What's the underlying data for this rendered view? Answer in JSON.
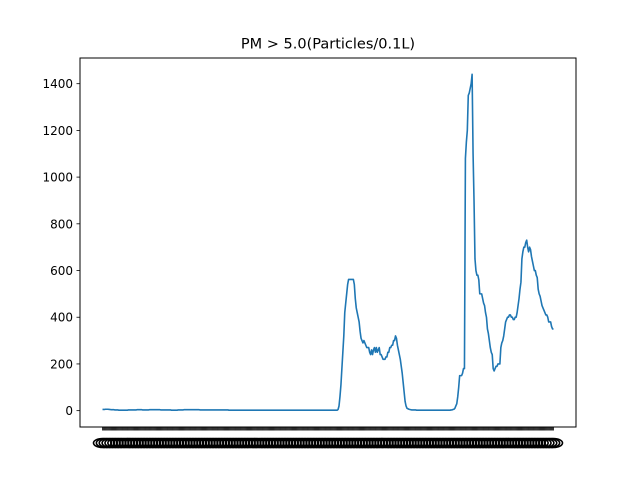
{
  "chart_data": {
    "type": "line",
    "title": "PM > 5.0(Particles/0.1L)",
    "xlabel": "",
    "ylabel": "",
    "ylim": [
      -70,
      1510
    ],
    "yticks": [
      0,
      200,
      400,
      600,
      800,
      1000,
      1200,
      1400
    ],
    "grid": false,
    "legend": "none",
    "line_color": "#1f77b4",
    "x_tick_labels_note": "",
    "series": [
      {
        "values": [
          5,
          5,
          5,
          6,
          6,
          6,
          6,
          5,
          5,
          4,
          4,
          4,
          4,
          3,
          3,
          3,
          3,
          2,
          2,
          2,
          2,
          2,
          2,
          2,
          2,
          2,
          2,
          3,
          3,
          3,
          3,
          3,
          3,
          3,
          3,
          3,
          4,
          4,
          4,
          4,
          4,
          4,
          3,
          3,
          3,
          3,
          3,
          3,
          3,
          4,
          4,
          4,
          4,
          4,
          4,
          4,
          4,
          4,
          4,
          4,
          4,
          3,
          3,
          3,
          3,
          3,
          3,
          3,
          3,
          3,
          3,
          3,
          2,
          2,
          2,
          2,
          2,
          2,
          2,
          3,
          3,
          3,
          3,
          3,
          3,
          4,
          4,
          4,
          4,
          4,
          4,
          4,
          4,
          4,
          4,
          4,
          4,
          4,
          4,
          4,
          4,
          4,
          3,
          3,
          3,
          3,
          3,
          3,
          3,
          3,
          3,
          3,
          3,
          3,
          3,
          3,
          3,
          3,
          3,
          3,
          3,
          3,
          3,
          3,
          3,
          3,
          3,
          3,
          3,
          3,
          3,
          3,
          2,
          2,
          2,
          2,
          2,
          2,
          2,
          2,
          2,
          2,
          2,
          2,
          2,
          2,
          2,
          2,
          2,
          2,
          2,
          2,
          2,
          2,
          2,
          2,
          2,
          2,
          2,
          2,
          2,
          2,
          2,
          2,
          2,
          2,
          2,
          2,
          2,
          2,
          2,
          2,
          2,
          2,
          2,
          2,
          2,
          2,
          2,
          2,
          2,
          2,
          2,
          2,
          2,
          2,
          2,
          2,
          2,
          2,
          2,
          2,
          2,
          2,
          2,
          2,
          2,
          2,
          2,
          2,
          2,
          2,
          2,
          2,
          2,
          2,
          2,
          2,
          2,
          2,
          2,
          2,
          2,
          2,
          2,
          2,
          2,
          2,
          2,
          2,
          2,
          2,
          2,
          2,
          2,
          2,
          2,
          2,
          2,
          2,
          2,
          2,
          2,
          2,
          2,
          2,
          2,
          2,
          2,
          2,
          2,
          2,
          2,
          2,
          2,
          2,
          5,
          20,
          60,
          110,
          180,
          250,
          320,
          420,
          460,
          500,
          540,
          562,
          562,
          562,
          562,
          562,
          562,
          540,
          480,
          440,
          420,
          400,
          380,
          340,
          310,
          300,
          290,
          300,
          290,
          280,
          270,
          270,
          270,
          250,
          240,
          260,
          240,
          260,
          270,
          250,
          270,
          250,
          260,
          270,
          240,
          240,
          230,
          220,
          220,
          220,
          230,
          230,
          250,
          250,
          270,
          270,
          280,
          280,
          300,
          300,
          320,
          310,
          280,
          260,
          240,
          220,
          190,
          160,
          120,
          80,
          40,
          20,
          10,
          8,
          6,
          5,
          4,
          3,
          3,
          3,
          3,
          3,
          2,
          2,
          2,
          2,
          2,
          2,
          2,
          2,
          2,
          2,
          2,
          2,
          2,
          2,
          2,
          2,
          2,
          2,
          2,
          2,
          2,
          2,
          2,
          2,
          2,
          2,
          2,
          2,
          2,
          2,
          2,
          2,
          2,
          2,
          2,
          2,
          3,
          3,
          5,
          6,
          10,
          20,
          30,
          60,
          100,
          150,
          150,
          150,
          160,
          180,
          180,
          1080,
          1150,
          1200,
          1350,
          1360,
          1380,
          1400,
          1440,
          1100,
          900,
          650,
          600,
          580,
          580,
          560,
          500,
          500,
          500,
          480,
          460,
          450,
          420,
          400,
          350,
          330,
          300,
          270,
          250,
          240,
          180,
          170,
          180,
          190,
          190,
          200,
          200,
          200,
          270,
          290,
          300,
          320,
          350,
          380,
          390,
          400,
          400,
          410,
          410,
          400,
          400,
          390,
          390,
          400,
          400,
          420,
          450,
          480,
          520,
          550,
          650,
          680,
          700,
          700,
          720,
          730,
          700,
          680,
          700,
          690,
          660,
          640,
          620,
          600,
          600,
          580,
          570,
          520,
          500,
          490,
          470,
          450,
          440,
          430,
          420,
          410,
          410,
          400,
          380,
          380,
          380,
          360,
          350,
          350
        ]
      }
    ]
  }
}
